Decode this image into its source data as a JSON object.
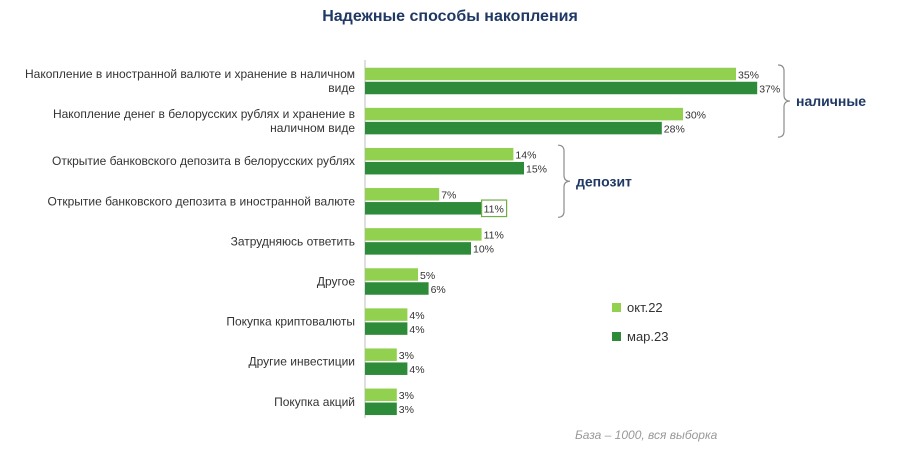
{
  "chart_data": {
    "type": "bar",
    "orientation": "horizontal",
    "title": "Надежные способы накопления",
    "categories": [
      [
        "Накопление в иностранной валюте и хранение в наличном",
        "виде"
      ],
      [
        "Накопление денег в белорусских рублях и хранение в",
        "наличном виде"
      ],
      [
        "Открытие банковского депозита в белорусских рублях"
      ],
      [
        "Открытие банковского депозита в иностранной валюте"
      ],
      [
        "Затрудняюсь ответить"
      ],
      [
        "Другое"
      ],
      [
        "Покупка криптовалюты"
      ],
      [
        "Другие инвестиции"
      ],
      [
        "Покупка акций"
      ]
    ],
    "series": [
      {
        "name": "окт.22",
        "color": "#92d050",
        "values": [
          35,
          30,
          14,
          7,
          11,
          5,
          4,
          3,
          3
        ],
        "labels": [
          "35%",
          "30%",
          "14%",
          "7%",
          "11%",
          "5%",
          "4%",
          "3%",
          "3%"
        ]
      },
      {
        "name": "мар.23",
        "color": "#2e8b3a",
        "values": [
          37,
          28,
          15,
          11,
          10,
          6,
          4,
          4,
          3
        ],
        "labels": [
          "37%",
          "28%",
          "15%",
          "11%",
          "10%",
          "6%",
          "4%",
          "4%",
          "3%"
        ]
      }
    ],
    "highlighted_value": {
      "series": 1,
      "category": 3
    },
    "groups": [
      {
        "label": "наличные",
        "categories": [
          0,
          1
        ]
      },
      {
        "label": "депозит",
        "categories": [
          2,
          3
        ]
      }
    ],
    "legend_position": "right",
    "grid": false,
    "axis_line": "left"
  },
  "footnote": "База – 1000, вся выборка"
}
